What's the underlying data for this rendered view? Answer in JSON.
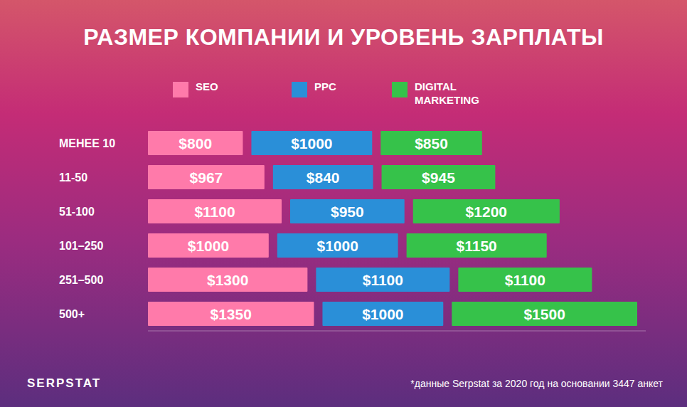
{
  "chart_data": {
    "type": "bar",
    "title": "РАЗМЕР КОМПАНИИ И УРОВЕНЬ ЗАРПЛАТЫ",
    "orientation": "horizontal",
    "stacked": true,
    "data_labels": true,
    "grid": false,
    "legend": "top",
    "tick_labels": "y",
    "categories": [
      "МЕНЕЕ 10",
      "11-50",
      "51-100",
      "101–250",
      "251–500",
      "500+"
    ],
    "xlim": [
      0,
      3850
    ],
    "series": [
      {
        "name": "SEO",
        "color": "#ff7aaa",
        "values": [
          800,
          967,
          1100,
          1000,
          1300,
          1350
        ],
        "value_labels": [
          "$800",
          "$967",
          "$1100",
          "$1000",
          "$1300",
          "$1350"
        ]
      },
      {
        "name": "PPC",
        "color": "#2a8fd8",
        "values": [
          1000,
          840,
          950,
          1000,
          1100,
          1000
        ],
        "value_labels": [
          "$1000",
          "$840",
          "$950",
          "$1000",
          "$1100",
          "$1000"
        ]
      },
      {
        "name": "DIGITAL MARKETING",
        "color": "#36c24a",
        "values": [
          850,
          945,
          1200,
          1150,
          1100,
          1500
        ],
        "value_labels": [
          "$850",
          "$945",
          "$1200",
          "$1150",
          "$1100",
          "$1500"
        ]
      }
    ],
    "annotations": [
      "*данные Serpstat за 2020 год на основании 3447 анкет",
      "SERPSTAT"
    ]
  }
}
